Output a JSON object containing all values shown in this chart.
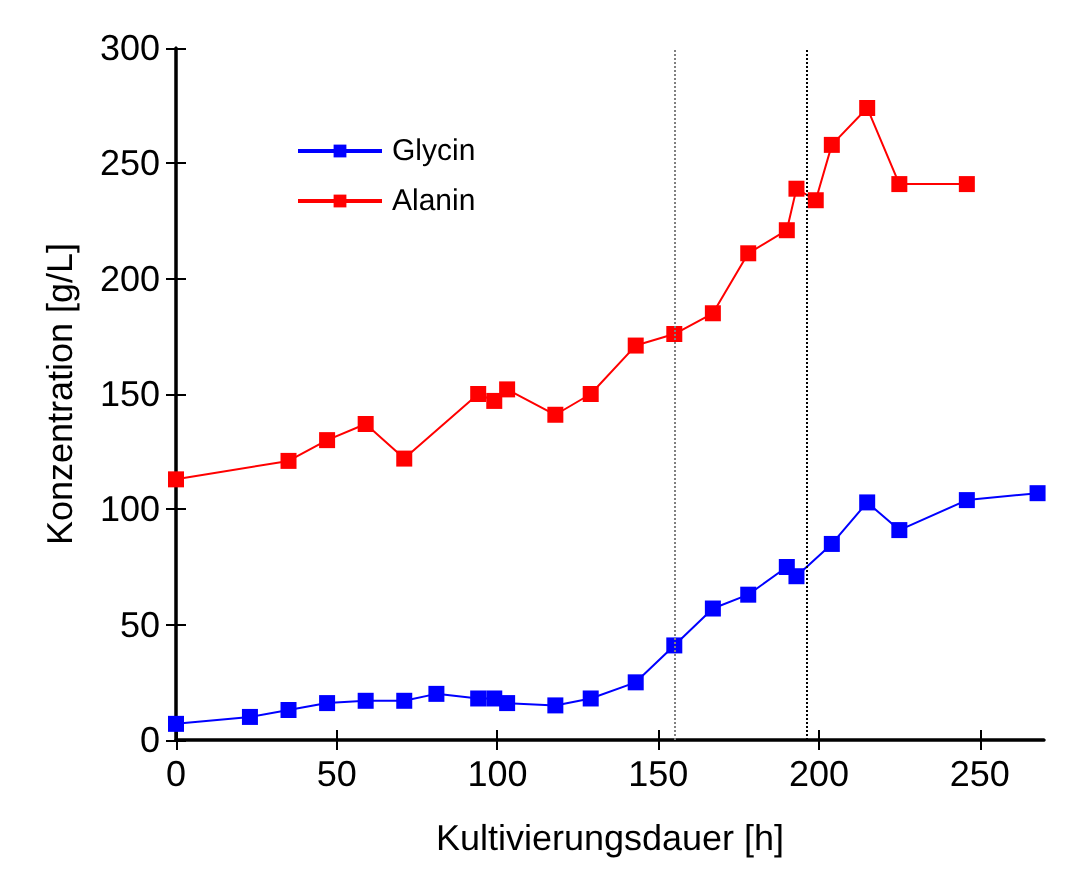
{
  "chart_data": {
    "type": "line",
    "xlabel": "Kultivierungsdauer [h]",
    "ylabel": "Konzentration [g/L]",
    "xlim": [
      0,
      270
    ],
    "xticks": [
      0,
      50,
      100,
      150,
      200,
      250
    ],
    "ylim": [
      0,
      300
    ],
    "yticks": [
      0,
      50,
      100,
      150,
      200,
      250,
      300
    ],
    "series": [
      {
        "name": "Glycin",
        "color": "#0000ff",
        "x": [
          0,
          23,
          35,
          47,
          59,
          71,
          81,
          94,
          99,
          103,
          118,
          129,
          143,
          155,
          167,
          178,
          190,
          193,
          204,
          215,
          225,
          246,
          268
        ],
        "values": [
          7,
          10,
          13,
          16,
          17,
          17,
          20,
          18,
          18,
          16,
          15,
          18,
          25,
          41,
          57,
          63,
          75,
          71,
          85,
          103,
          91,
          104,
          107
        ]
      },
      {
        "name": "Alanin",
        "color": "#ff0000",
        "x": [
          0,
          35,
          47,
          59,
          71,
          94,
          99,
          103,
          118,
          129,
          143,
          155,
          167,
          178,
          190,
          193,
          199,
          204,
          215,
          225,
          246
        ],
        "values": [
          113,
          121,
          130,
          137,
          122,
          150,
          147,
          152,
          141,
          150,
          171,
          176,
          185,
          211,
          221,
          239,
          234,
          258,
          274,
          241,
          241
        ]
      }
    ],
    "ref_lines": [
      {
        "axis": "x",
        "value": 155,
        "color": "#808080",
        "line_style": "dotted"
      },
      {
        "axis": "x",
        "value": 196,
        "color": "#000000",
        "line_style": "dotted"
      }
    ],
    "legend": "top left",
    "marker": "square",
    "grid": false
  }
}
